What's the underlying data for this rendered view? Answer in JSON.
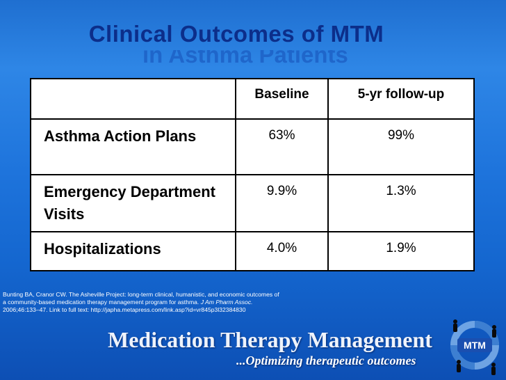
{
  "slide": {
    "title": "Clinical Outcomes of MTM",
    "title_line2_partial": "in Asthma Patients"
  },
  "table": {
    "headers": [
      "",
      "Baseline",
      "5-yr follow-up"
    ],
    "rows": [
      {
        "label": "Asthma Action Plans",
        "baseline": "63%",
        "followup": "99%"
      },
      {
        "label": "Emergency Department Visits",
        "baseline": "9.9%",
        "followup": "1.3%"
      },
      {
        "label": "Hospitalizations",
        "baseline": "4.0%",
        "followup": "1.9%"
      }
    ]
  },
  "citation": {
    "line1": "Bunting BA, Cranor CW. The Asheville Project: long-term clinical, humanistic, and economic outcomes of",
    "line2_pre": "a community-based medication therapy management program for asthma. ",
    "line2_journal": "J Am Pharm Assoc.",
    "line3": "2006;46:133–47. Link to full text: http://japha.metapress.com/link.asp?id=vr845p3l32384830"
  },
  "footer": {
    "banner": "Medication Therapy Management",
    "tagline": "...Optimizing therapeutic outcomes",
    "logo_text": "MTM"
  },
  "colors": {
    "background": "#1e74dc",
    "title": "#0c2e8a",
    "table_bg": "#ffffff"
  }
}
